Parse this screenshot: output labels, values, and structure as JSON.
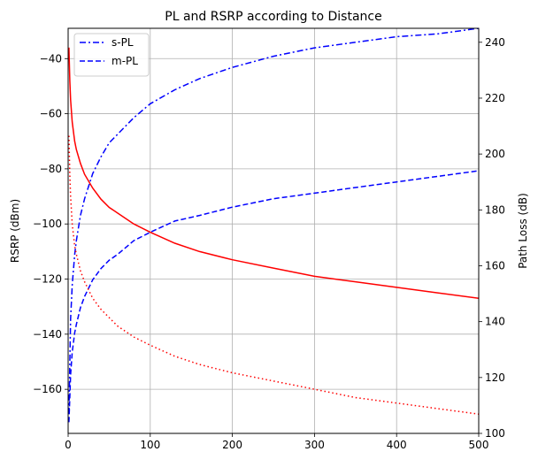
{
  "chart_data": {
    "type": "line",
    "title": "PL and RSRP according to Distance",
    "xlabel": "",
    "ylabel_left": "RSRP (dBm)",
    "ylabel_right": "Path Loss (dB)",
    "xlim": [
      0,
      500
    ],
    "ylim_left": [
      -176,
      -29
    ],
    "ylim_right": [
      100,
      245
    ],
    "x_ticks": [
      0,
      100,
      200,
      300,
      400,
      500
    ],
    "y_ticks_left": [
      -160,
      -140,
      -120,
      -100,
      -80,
      -60,
      -40
    ],
    "y_ticks_right": [
      100,
      120,
      140,
      160,
      180,
      200,
      220,
      240
    ],
    "grid": true,
    "legend_position": "top-left",
    "legend": [
      {
        "label": "s-PL",
        "color": "#0000ff",
        "style": "dashdot"
      },
      {
        "label": "m-PL",
        "color": "#0000ff",
        "style": "dashed"
      }
    ],
    "series": [
      {
        "axis": "right",
        "color": "#0000ff",
        "style": "dashdot",
        "x": [
          1,
          3,
          5,
          8,
          10,
          15,
          20,
          30,
          40,
          50,
          60,
          80,
          100,
          130,
          160,
          200,
          250,
          300,
          350,
          400,
          450,
          500
        ],
        "y": [
          107,
          141,
          153,
          164,
          169,
          178,
          184,
          193,
          199,
          204,
          207,
          213,
          218,
          223,
          227,
          231,
          235,
          238,
          240,
          242,
          243,
          245
        ]
      },
      {
        "axis": "right",
        "color": "#0000ff",
        "style": "dashed",
        "x": [
          1,
          3,
          5,
          8,
          10,
          15,
          20,
          30,
          40,
          50,
          60,
          80,
          100,
          130,
          160,
          200,
          250,
          300,
          350,
          400,
          450,
          500
        ],
        "y": [
          104,
          121,
          129,
          136,
          139,
          145,
          149,
          155,
          159,
          162,
          164,
          169,
          172,
          176,
          178,
          181,
          184,
          186,
          188,
          190,
          192,
          194
        ]
      },
      {
        "axis": "left",
        "color": "#ff0000",
        "style": "solid",
        "x": [
          1,
          2,
          3,
          5,
          8,
          10,
          15,
          20,
          30,
          40,
          50,
          60,
          80,
          100,
          130,
          160,
          200,
          250,
          300,
          350,
          400,
          450,
          500
        ],
        "y": [
          -36,
          -48,
          -55,
          -63,
          -70,
          -73,
          -78,
          -82,
          -87,
          -91,
          -94,
          -96,
          -100,
          -103,
          -107,
          -110,
          -113,
          -116,
          -119,
          -121,
          -123,
          -125,
          -127
        ]
      },
      {
        "axis": "left",
        "color": "#ff0000",
        "style": "dotted",
        "x": [
          1,
          2,
          3,
          5,
          8,
          10,
          15,
          20,
          30,
          40,
          50,
          60,
          80,
          100,
          130,
          160,
          200,
          250,
          300,
          350,
          400,
          450,
          500
        ],
        "y": [
          -68,
          -82,
          -90,
          -100,
          -108,
          -111,
          -117,
          -121,
          -127,
          -131,
          -134,
          -137,
          -141,
          -144,
          -148,
          -151,
          -154,
          -157,
          -160,
          -163,
          -165,
          -167,
          -169
        ]
      }
    ]
  }
}
